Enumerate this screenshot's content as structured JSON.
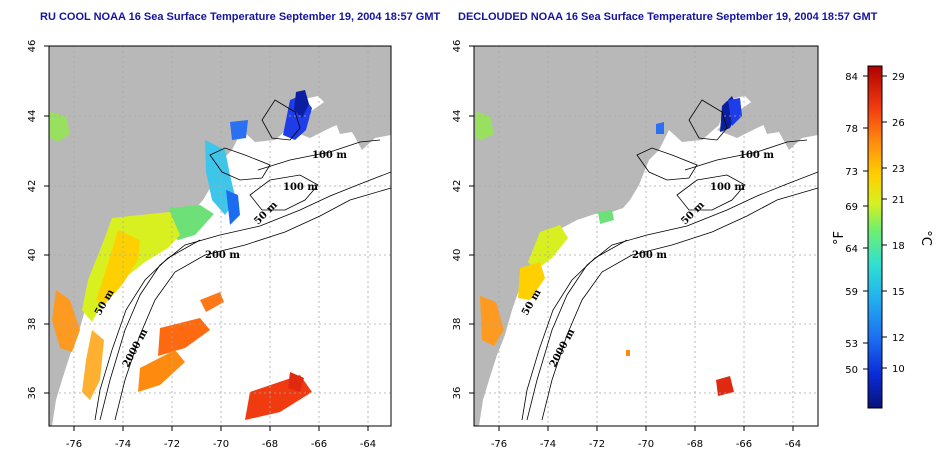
{
  "titles": {
    "left": "RU COOL NOAA 16 Sea Surface Temperature September 19, 2004 18:57 GMT",
    "right": "DECLOUDED NOAA 16 Sea Surface Temperature September 19, 2004 18:57 GMT"
  },
  "axes": {
    "lon_ticks": [
      "-76",
      "-74",
      "-72",
      "-70",
      "-68",
      "-66",
      "-64"
    ],
    "lat_ticks": [
      "46",
      "44",
      "42",
      "40",
      "38",
      "36"
    ]
  },
  "contour_labels": {
    "left": [
      "100 m",
      "100 m",
      "50 m",
      "200 m",
      "50 m",
      "2000 m"
    ],
    "right": [
      "100 m",
      "100 m",
      "50 m",
      "200 m",
      "50 m",
      "2000 m"
    ]
  },
  "colorbar": {
    "fahrenheit_labels": [
      "84",
      "78",
      "73",
      "69",
      "64",
      "59",
      "53",
      "50"
    ],
    "celsius_labels": [
      "29",
      "26",
      "23",
      "21",
      "18",
      "15",
      "12",
      "10"
    ],
    "unit_f": "°F",
    "unit_c": "°C",
    "colors": [
      "#08127a",
      "#0a2cd8",
      "#1c6cf0",
      "#22b0f0",
      "#30e0d0",
      "#70f070",
      "#d8f020",
      "#ffd000",
      "#ff8a10",
      "#f03a10",
      "#b00000"
    ]
  },
  "map_colors": {
    "land": "#b8b8b8",
    "ocean": "#ffffff",
    "grid": "#a8a8a8",
    "contour": "#000000"
  }
}
